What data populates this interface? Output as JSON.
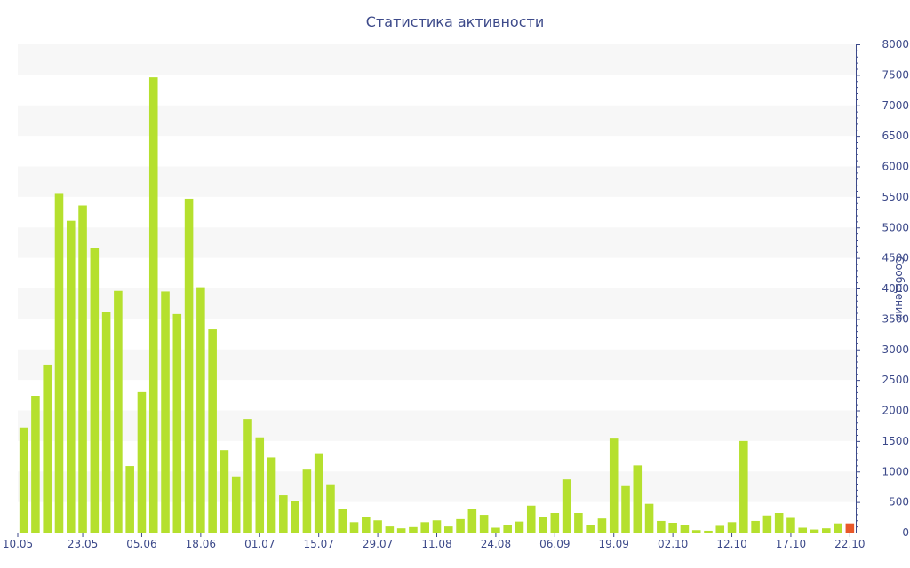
{
  "chart_data": {
    "type": "bar",
    "title": "Статистика активности",
    "ylabel": "Сообщений",
    "xlabel": "",
    "ylim": [
      0,
      8000
    ],
    "y_ticks": [
      0,
      500,
      1000,
      1500,
      2000,
      2500,
      3000,
      3500,
      4000,
      4500,
      5000,
      5500,
      6000,
      6500,
      7000,
      7500,
      8000
    ],
    "x_tick_labels": [
      "10.05",
      "23.05",
      "05.06",
      "18.06",
      "01.07",
      "15.07",
      "29.07",
      "11.08",
      "24.08",
      "06.09",
      "19.09",
      "02.10",
      "12.10",
      "17.10",
      "22.10"
    ],
    "x_tick_bar_index": [
      0,
      5,
      10,
      15,
      20,
      25,
      30,
      35,
      40,
      45,
      50,
      55,
      60,
      65,
      70
    ],
    "y_axis_position": "right",
    "grid": "alternating horizontal bands",
    "colors": {
      "bar": "#b5e02e",
      "last_bar": "#e8582a",
      "text": "#3d4a8a",
      "band": "#f7f7f7"
    },
    "values": [
      1720,
      2240,
      2750,
      5550,
      5110,
      5360,
      4660,
      3610,
      3960,
      1090,
      2300,
      7460,
      3950,
      3580,
      5470,
      4020,
      3330,
      1350,
      920,
      1860,
      1560,
      1230,
      610,
      520,
      1030,
      1300,
      790,
      380,
      170,
      250,
      200,
      100,
      70,
      90,
      170,
      200,
      100,
      220,
      390,
      290,
      80,
      120,
      180,
      440,
      250,
      320,
      870,
      320,
      130,
      230,
      1540,
      760,
      1100,
      470,
      190,
      160,
      130,
      40,
      30,
      110,
      170,
      1500,
      190,
      280,
      320,
      240,
      80,
      50,
      70,
      150,
      150
    ]
  }
}
